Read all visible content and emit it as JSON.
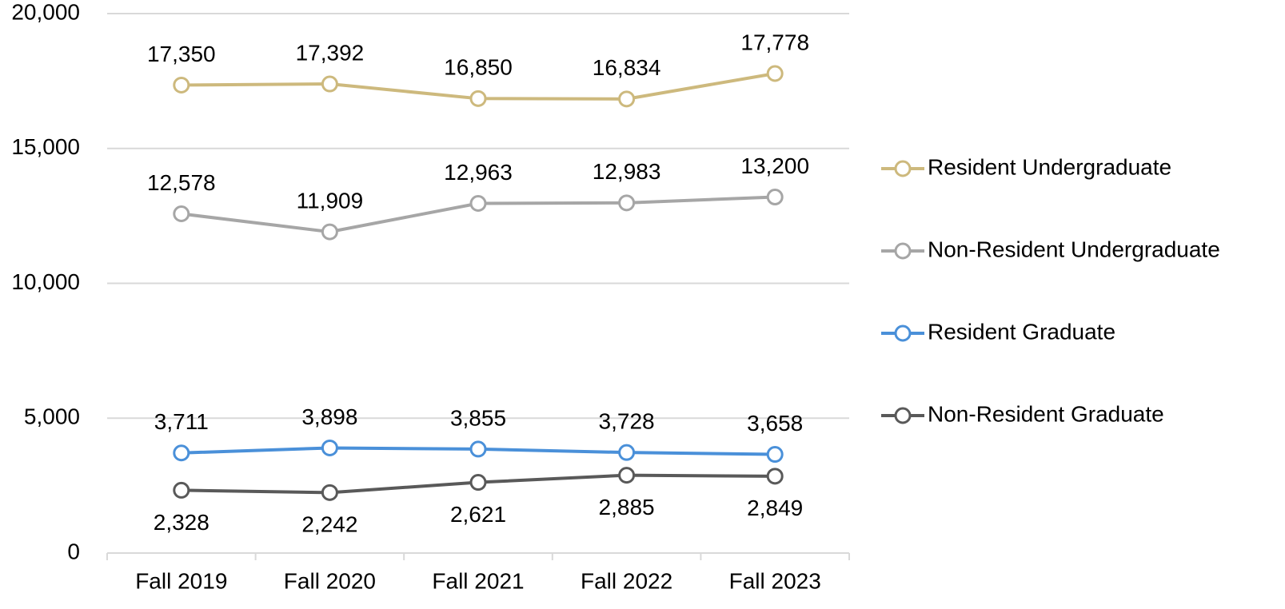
{
  "chart_data": {
    "type": "line",
    "categories": [
      "Fall 2019",
      "Fall 2020",
      "Fall 2021",
      "Fall 2022",
      "Fall 2023"
    ],
    "series": [
      {
        "name": "Resident Undergraduate",
        "color": "#cdb97d",
        "label_position": "above",
        "values": [
          17350,
          17392,
          16850,
          16834,
          17778
        ],
        "value_labels": [
          "17,350",
          "17,392",
          "16,850",
          "16,834",
          "17,778"
        ]
      },
      {
        "name": "Non-Resident Undergraduate",
        "color": "#a6a6a6",
        "label_position": "above",
        "values": [
          12578,
          11909,
          12963,
          12983,
          13200
        ],
        "value_labels": [
          "12,578",
          "11,909",
          "12,963",
          "12,983",
          "13,200"
        ]
      },
      {
        "name": "Resident Graduate",
        "color": "#4a90d9",
        "label_position": "above",
        "values": [
          3711,
          3898,
          3855,
          3728,
          3658
        ],
        "value_labels": [
          "3,711",
          "3,898",
          "3,855",
          "3,728",
          "3,658"
        ]
      },
      {
        "name": "Non-Resident Graduate",
        "color": "#595959",
        "label_position": "below",
        "values": [
          2328,
          2242,
          2621,
          2885,
          2849
        ],
        "value_labels": [
          "2,328",
          "2,242",
          "2,621",
          "2,885",
          "2,849"
        ]
      }
    ],
    "ylim": [
      0,
      20000
    ],
    "yticks": [
      0,
      {
        "value": 5000,
        "label": "5,000"
      },
      {
        "value": 10000,
        "label": "10,000"
      },
      {
        "value": 15000,
        "label": "15,000"
      },
      {
        "value": 20000,
        "label": "20,000"
      }
    ],
    "grid": true,
    "legend": "right"
  }
}
